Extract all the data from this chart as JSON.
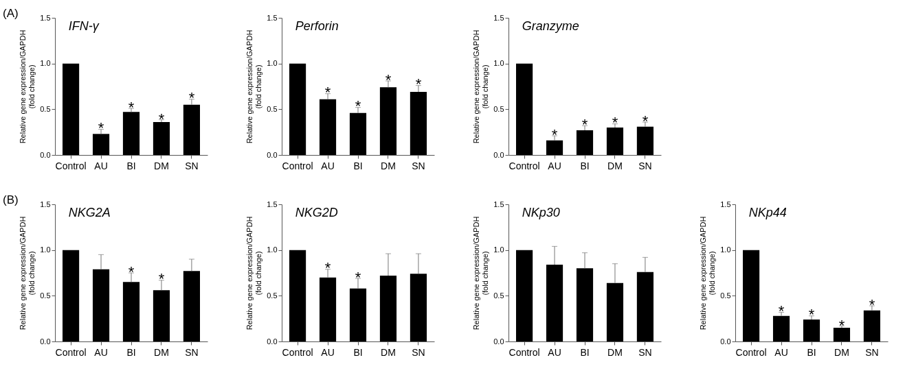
{
  "chart_data": [
    {
      "type": "bar",
      "title": "IFN-γ",
      "ylabel": "Relative gene expression/GAPDH\n(fold change)",
      "categories": [
        "Control",
        "AU",
        "BI",
        "DM",
        "SN"
      ],
      "series": [
        {
          "color": "#000000",
          "values": [
            1.0,
            0.23,
            0.47,
            0.36,
            0.55
          ],
          "errors": [
            null,
            [
              0.23,
              0.28
            ],
            [
              0.47,
              0.51
            ],
            [
              0.36,
              0.385
            ],
            [
              0.55,
              0.61
            ]
          ]
        }
      ],
      "ylim": [
        0,
        1.5
      ],
      "yticks": [
        {
          "value": 0,
          "label": "0.0"
        },
        {
          "value": 0.5,
          "label": "0.5"
        },
        {
          "value": 1,
          "label": "1.0"
        },
        {
          "value": 1.5,
          "label": "1.5"
        }
      ],
      "grid": false,
      "annotations": [
        "(A)",
        {
          "text": "*",
          "x": "AU",
          "y": 0.32
        },
        {
          "text": "*",
          "x": "BI",
          "y": 0.55
        },
        {
          "text": "*",
          "x": "DM",
          "y": 0.42
        },
        {
          "text": "*",
          "x": "SN",
          "y": 0.65
        }
      ]
    },
    {
      "type": "bar",
      "title": "Perforin",
      "ylabel": "Relative gene expression/GAPDH\n(fold change)",
      "categories": [
        "Control",
        "AU",
        "BI",
        "DM",
        "SN"
      ],
      "series": [
        {
          "color": "#000000",
          "values": [
            1.0,
            0.61,
            0.46,
            0.74,
            0.69
          ],
          "errors": [
            null,
            [
              0.61,
              0.67
            ],
            [
              0.46,
              0.52
            ],
            [
              0.74,
              0.81
            ],
            [
              0.69,
              0.76
            ]
          ]
        }
      ],
      "ylim": [
        0,
        1.5
      ],
      "yticks": [
        {
          "value": 0,
          "label": "0.0"
        },
        {
          "value": 0.5,
          "label": "0.5"
        },
        {
          "value": 1,
          "label": "1.0"
        },
        {
          "value": 1.5,
          "label": "1.5"
        }
      ],
      "grid": false,
      "annotations": [
        {
          "text": "*",
          "x": "AU",
          "y": 0.71
        },
        {
          "text": "*",
          "x": "BI",
          "y": 0.56
        },
        {
          "text": "*",
          "x": "DM",
          "y": 0.85
        },
        {
          "text": "*",
          "x": "SN",
          "y": 0.8
        }
      ]
    },
    {
      "type": "bar",
      "title": "Granzyme",
      "ylabel": "Relative gene expression/GAPDH\n(fold change)",
      "categories": [
        "Control",
        "AU",
        "BI",
        "DM",
        "SN"
      ],
      "series": [
        {
          "color": "#000000",
          "values": [
            1.0,
            0.16,
            0.27,
            0.3,
            0.31
          ],
          "errors": [
            null,
            [
              0.16,
              0.21
            ],
            [
              0.27,
              0.32
            ],
            [
              0.3,
              0.34
            ],
            [
              0.31,
              0.36
            ]
          ]
        }
      ],
      "ylim": [
        0,
        1.5
      ],
      "yticks": [
        {
          "value": 0,
          "label": "0.0"
        },
        {
          "value": 0.5,
          "label": "0.5"
        },
        {
          "value": 1,
          "label": "1.0"
        },
        {
          "value": 1.5,
          "label": "1.5"
        }
      ],
      "grid": false,
      "annotations": [
        {
          "text": "*",
          "x": "AU",
          "y": 0.25
        },
        {
          "text": "*",
          "x": "BI",
          "y": 0.36
        },
        {
          "text": "*",
          "x": "DM",
          "y": 0.38
        },
        {
          "text": "*",
          "x": "SN",
          "y": 0.4
        }
      ]
    },
    {
      "type": "bar",
      "title": "NKG2A",
      "ylabel": "Relative gene expression/GAPDH\n(fold change)",
      "categories": [
        "Control",
        "AU",
        "BI",
        "DM",
        "SN"
      ],
      "series": [
        {
          "color": "#000000",
          "values": [
            1.0,
            0.79,
            0.65,
            0.56,
            0.77
          ],
          "errors": [
            null,
            [
              0.79,
              0.95
            ],
            [
              0.65,
              0.75
            ],
            [
              0.56,
              0.67
            ],
            [
              0.77,
              0.9
            ]
          ]
        }
      ],
      "ylim": [
        0,
        1.5
      ],
      "yticks": [
        {
          "value": 0,
          "label": "0.0"
        },
        {
          "value": 0.5,
          "label": "0.5"
        },
        {
          "value": 1,
          "label": "1.0"
        },
        {
          "value": 1.5,
          "label": "1.5"
        }
      ],
      "grid": false,
      "annotations": [
        "(B)",
        {
          "text": "*",
          "x": "BI",
          "y": 0.79
        },
        {
          "text": "*",
          "x": "DM",
          "y": 0.71
        }
      ]
    },
    {
      "type": "bar",
      "title": "NKG2D",
      "ylabel": "Relative gene expression/GAPDH\n(fold change)",
      "categories": [
        "Control",
        "AU",
        "BI",
        "DM",
        "SN"
      ],
      "series": [
        {
          "color": "#000000",
          "values": [
            1.0,
            0.7,
            0.58,
            0.72,
            0.74
          ],
          "errors": [
            null,
            [
              0.7,
              0.79
            ],
            [
              0.58,
              0.69
            ],
            [
              0.72,
              0.96
            ],
            [
              0.74,
              0.96
            ]
          ]
        }
      ],
      "ylim": [
        0,
        1.5
      ],
      "yticks": [
        {
          "value": 0,
          "label": "0.0"
        },
        {
          "value": 0.5,
          "label": "0.5"
        },
        {
          "value": 1,
          "label": "1.0"
        },
        {
          "value": 1.5,
          "label": "1.5"
        }
      ],
      "grid": false,
      "annotations": [
        {
          "text": "*",
          "x": "AU",
          "y": 0.83
        },
        {
          "text": "*",
          "x": "BI",
          "y": 0.73
        }
      ]
    },
    {
      "type": "bar",
      "title": "NKp30",
      "ylabel": "Relative gene expression/GAPDH\n(fold change)",
      "categories": [
        "Control",
        "AU",
        "BI",
        "DM",
        "SN"
      ],
      "series": [
        {
          "color": "#000000",
          "values": [
            1.0,
            0.84,
            0.8,
            0.64,
            0.76
          ],
          "errors": [
            null,
            [
              0.84,
              1.04
            ],
            [
              0.8,
              0.97
            ],
            [
              0.64,
              0.85
            ],
            [
              0.76,
              0.92
            ]
          ]
        }
      ],
      "ylim": [
        0,
        1.5
      ],
      "yticks": [
        {
          "value": 0,
          "label": "0.0"
        },
        {
          "value": 0.5,
          "label": "0.5"
        },
        {
          "value": 1,
          "label": "1.0"
        },
        {
          "value": 1.5,
          "label": "1.5"
        }
      ],
      "grid": false
    },
    {
      "type": "bar",
      "title": "NKp44",
      "ylabel": "Relative gene expression/GAPDH\n(fold change)",
      "categories": [
        "Control",
        "AU",
        "BI",
        "DM",
        "SN"
      ],
      "series": [
        {
          "color": "#000000",
          "values": [
            1.0,
            0.28,
            0.24,
            0.15,
            0.34
          ],
          "errors": [
            null,
            [
              0.28,
              0.32
            ],
            [
              0.24,
              0.28
            ],
            [
              0.15,
              0.17
            ],
            [
              0.34,
              0.39
            ]
          ]
        }
      ],
      "ylim": [
        0,
        1.5
      ],
      "yticks": [
        {
          "value": 0,
          "label": "0.0"
        },
        {
          "value": 0.5,
          "label": "0.5"
        },
        {
          "value": 1,
          "label": "1.0"
        },
        {
          "value": 1.5,
          "label": "1.5"
        }
      ],
      "grid": false,
      "annotations": [
        {
          "text": "*",
          "x": "AU",
          "y": 0.36
        },
        {
          "text": "*",
          "x": "BI",
          "y": 0.32
        },
        {
          "text": "*",
          "x": "DM",
          "y": 0.2
        },
        {
          "text": "*",
          "x": "SN",
          "y": 0.43
        }
      ]
    }
  ]
}
